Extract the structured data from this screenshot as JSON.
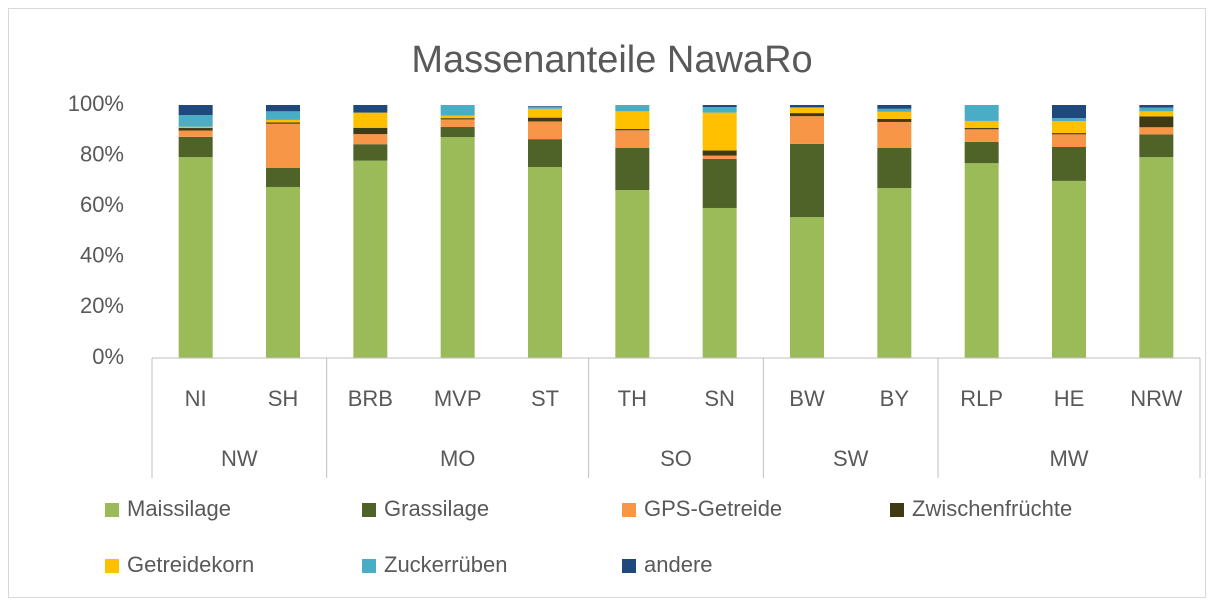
{
  "chart_data": {
    "type": "stacked_bar",
    "title": "Massenanteile NawaRo",
    "groups": [
      {
        "label": "NW",
        "categories": [
          "NI",
          "SH"
        ]
      },
      {
        "label": "MO",
        "categories": [
          "BRB",
          "MVP",
          "ST"
        ]
      },
      {
        "label": "SO",
        "categories": [
          "TH",
          "SN"
        ]
      },
      {
        "label": "SW",
        "categories": [
          "BW",
          "BY"
        ]
      },
      {
        "label": "MW",
        "categories": [
          "RLP",
          "HE",
          "NRW"
        ]
      }
    ],
    "series": [
      {
        "name": "Maissilage",
        "color": "#9bbb59",
        "values": [
          79.4,
          67.6,
          78,
          87.3,
          75.5,
          66.4,
          59.3,
          55.7,
          67.2,
          77,
          70,
          79.4
        ]
      },
      {
        "name": "Grassilage",
        "color": "#4f6228",
        "values": [
          8,
          7.5,
          6.5,
          4,
          11,
          16.6,
          19.4,
          28.9,
          15.8,
          8.4,
          13.4,
          9
        ]
      },
      {
        "name": "GPS-Getreide",
        "color": "#f79646",
        "values": [
          2.5,
          17.5,
          4,
          3,
          7,
          7,
          1.3,
          11,
          10.3,
          5,
          5,
          2.8
        ]
      },
      {
        "name": "Zwischenfrüchte",
        "color": "#403a14",
        "values": [
          1,
          0.5,
          2.5,
          0.5,
          1.5,
          0.5,
          2,
          1.2,
          1.2,
          0.5,
          0.5,
          4.3
        ]
      },
      {
        "name": "Getreidekorn",
        "color": "#ffc000",
        "values": [
          0.5,
          1,
          6,
          1,
          3.5,
          7,
          15,
          2,
          2.8,
          2.8,
          4.7,
          2
        ]
      },
      {
        "name": "Zuckerrüben",
        "color": "#4bacc6",
        "values": [
          4.6,
          3.4,
          0,
          4.2,
          0.7,
          2.5,
          2.2,
          0.4,
          1.2,
          6.3,
          1.2,
          1.5
        ]
      },
      {
        "name": "andere",
        "color": "#1f497d",
        "values": [
          4,
          2.5,
          3,
          0,
          0.3,
          0,
          0.8,
          0.8,
          1.5,
          0,
          5.2,
          1
        ]
      }
    ],
    "ylim": [
      0,
      100
    ],
    "yticks": [
      {
        "value": 0,
        "label": "0%"
      },
      {
        "value": 20,
        "label": "20%"
      },
      {
        "value": 40,
        "label": "40%"
      },
      {
        "value": 60,
        "label": "60%"
      },
      {
        "value": 80,
        "label": "80%"
      },
      {
        "value": 100,
        "label": "100%"
      }
    ],
    "grid": false,
    "legend": "bottom"
  }
}
